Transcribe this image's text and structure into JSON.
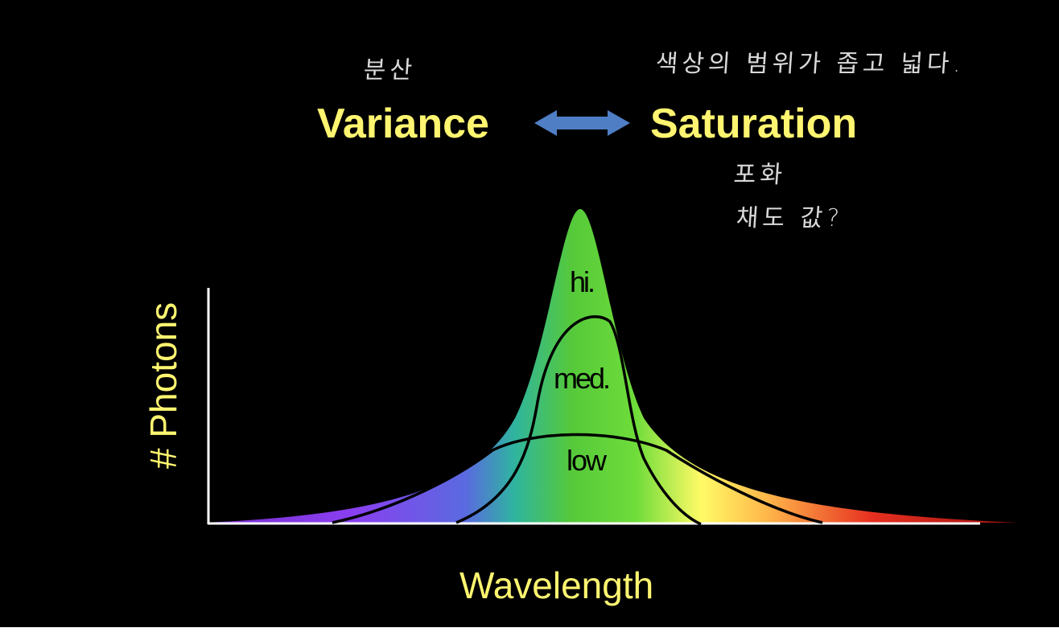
{
  "annotations": {
    "variance_ko": "분산",
    "saturation_range_ko": "색상의 범위가 좁고 넓다.",
    "saturation_ko": "포화",
    "chroma_ko": "채도 값?"
  },
  "header": {
    "left_term": "Variance",
    "right_term": "Saturation",
    "arrow_color": "#4f7ec4",
    "text_color": "#fff570"
  },
  "diagram": {
    "y_axis_label": "# Photons",
    "x_axis_label": "Wavelength",
    "curve_labels": {
      "hi": "hi.",
      "med": "med.",
      "low": "low"
    },
    "spectrum_colors": [
      "#7a2fd0",
      "#8a3ff0",
      "#5a6ae0",
      "#2fb4a0",
      "#55c93a",
      "#6fdc3a",
      "#fffb66",
      "#ffb84a",
      "#e63020",
      "#a01010"
    ]
  }
}
